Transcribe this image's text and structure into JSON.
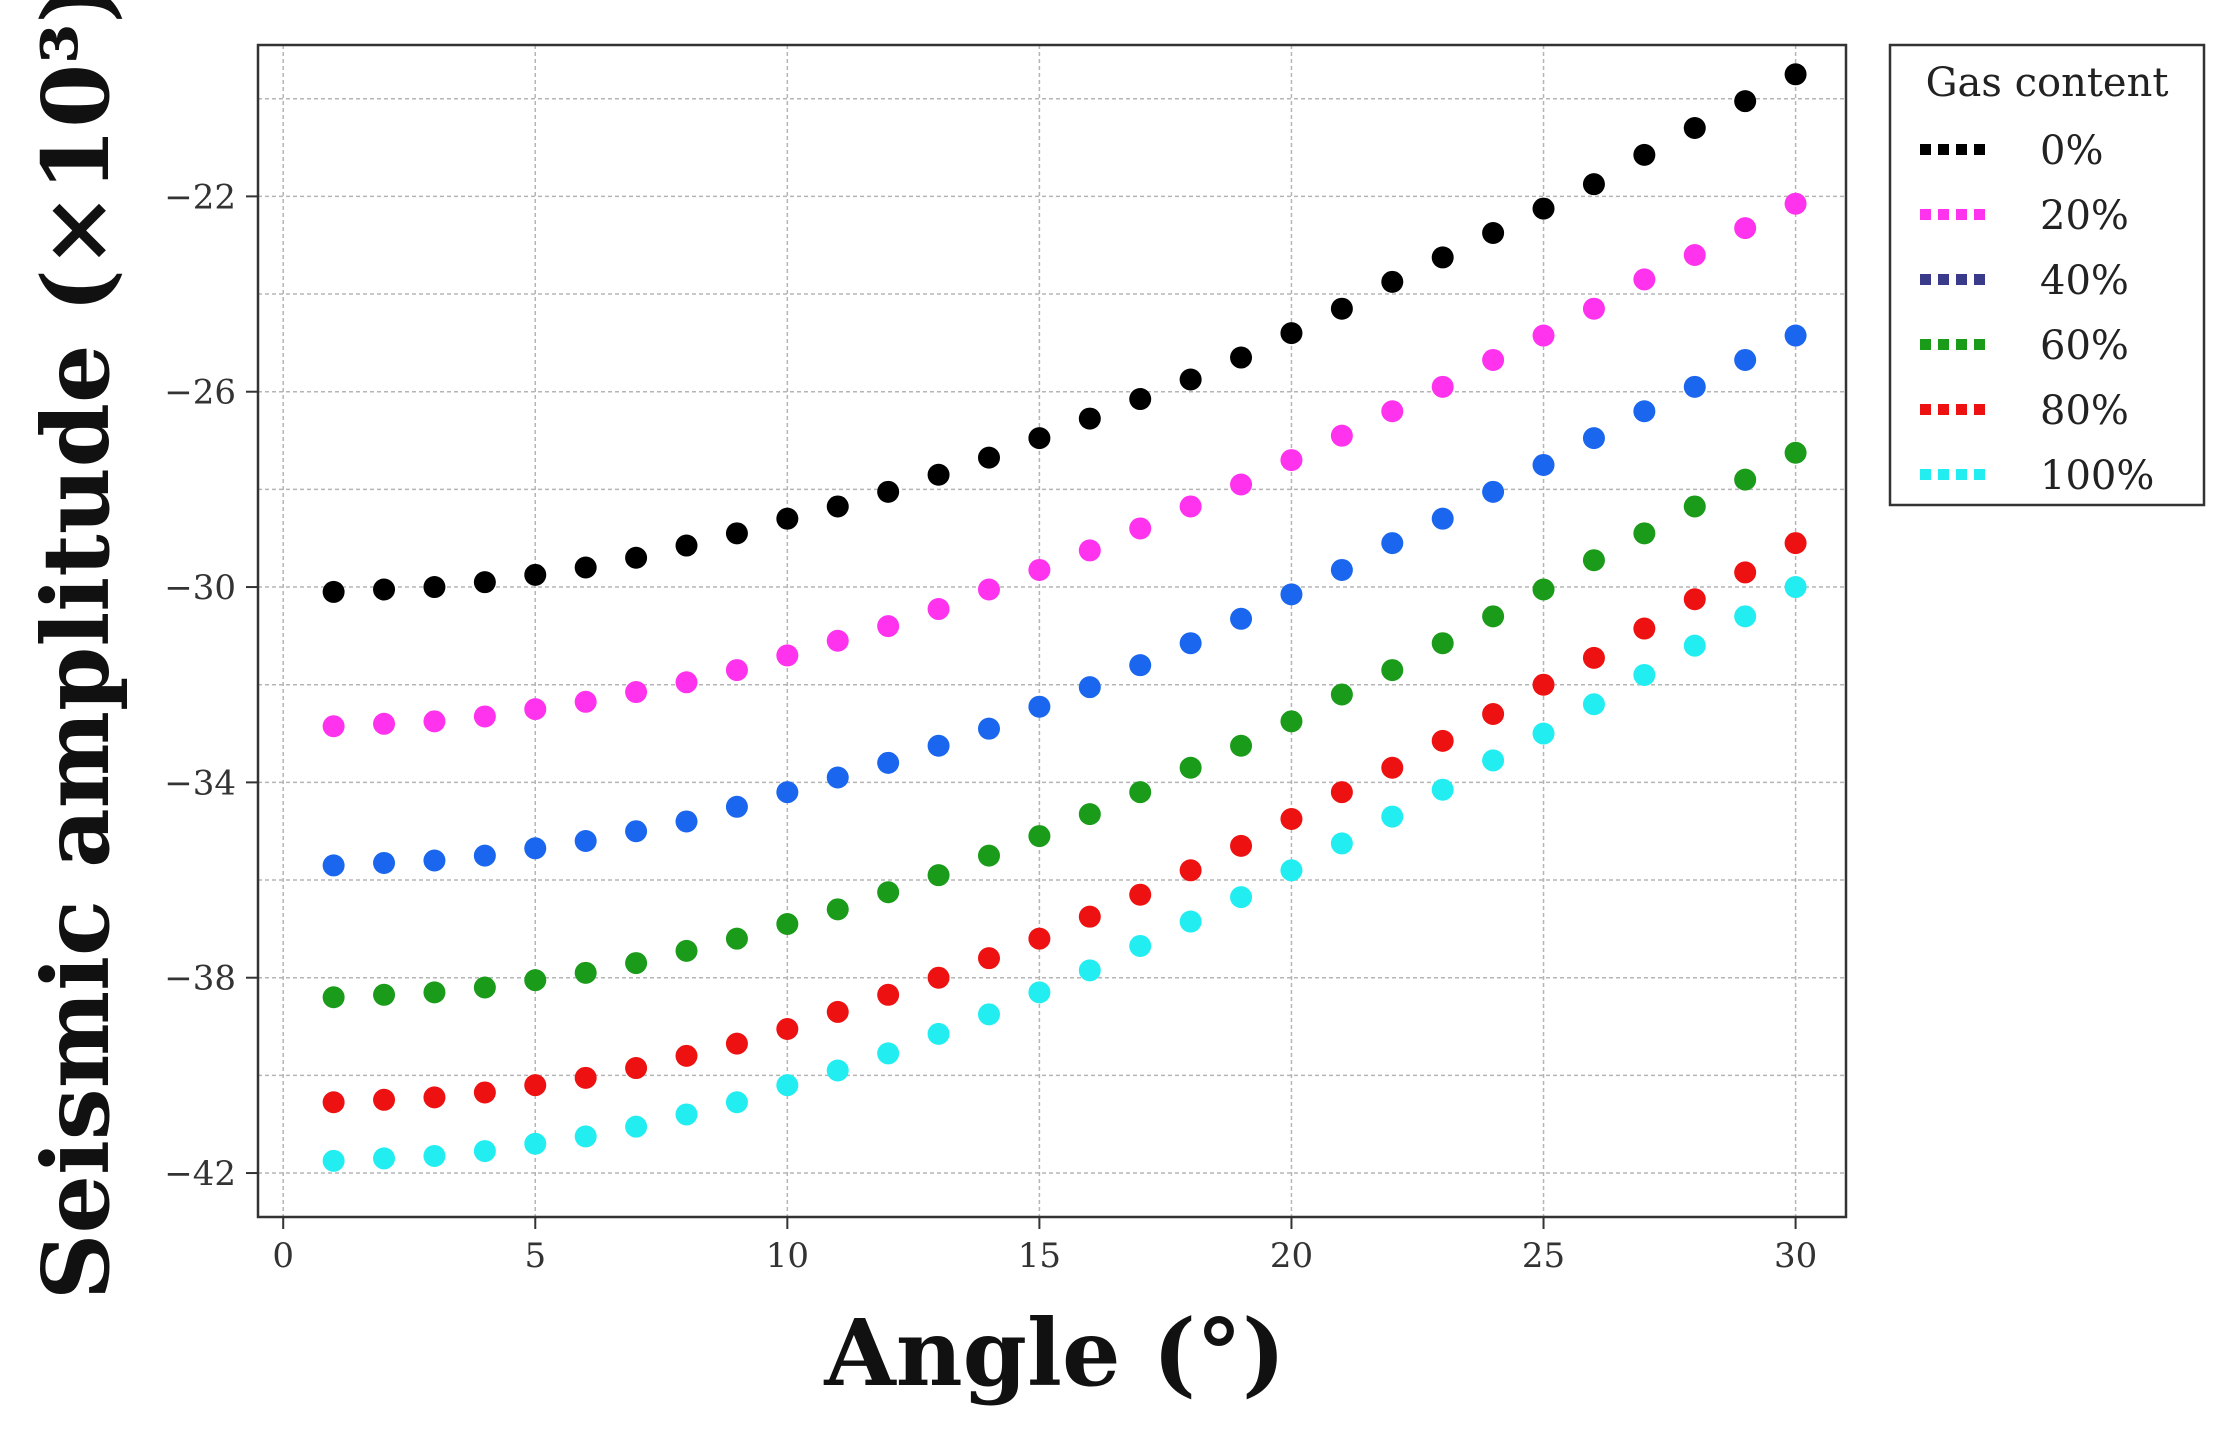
{
  "chart_data": {
    "type": "scatter",
    "title": "",
    "xlabel": "Angle (°)",
    "ylabel": "Seismic amplitude (×10³)",
    "xlim": [
      -0.5,
      31
    ],
    "ylim": [
      -42.9,
      -18.9
    ],
    "xticks": [
      0,
      5,
      10,
      15,
      20,
      25,
      30
    ],
    "yticks": [
      -22,
      -26,
      -30,
      -34,
      -38,
      -42
    ],
    "ytick_labels": [
      "−22",
      "−26",
      "−30",
      "−34",
      "−38",
      "−42"
    ],
    "grid": true,
    "legend": {
      "title": "Gas content",
      "position": "outside-right"
    },
    "x": [
      1,
      2,
      3,
      4,
      5,
      6,
      7,
      8,
      9,
      10,
      11,
      12,
      13,
      14,
      15,
      16,
      17,
      18,
      19,
      20,
      21,
      22,
      23,
      24,
      25,
      26,
      27,
      28,
      29,
      30
    ],
    "series": [
      {
        "name": "0%",
        "color": "#000000",
        "legend_color": "#000000",
        "values": [
          -30.1,
          -30.05,
          -30.0,
          -29.9,
          -29.75,
          -29.6,
          -29.4,
          -29.15,
          -28.9,
          -28.6,
          -28.35,
          -28.05,
          -27.7,
          -27.35,
          -26.95,
          -26.55,
          -26.15,
          -25.75,
          -25.3,
          -24.8,
          -24.3,
          -23.75,
          -23.25,
          -22.75,
          -22.25,
          -21.75,
          -21.15,
          -20.6,
          -20.05,
          -19.5
        ]
      },
      {
        "name": "20%",
        "color": "#ff33ee",
        "legend_color": "#ff33ee",
        "values": [
          -32.85,
          -32.8,
          -32.75,
          -32.65,
          -32.5,
          -32.35,
          -32.15,
          -31.95,
          -31.7,
          -31.4,
          -31.1,
          -30.8,
          -30.45,
          -30.05,
          -29.65,
          -29.25,
          -28.8,
          -28.35,
          -27.9,
          -27.4,
          -26.9,
          -26.4,
          -25.9,
          -25.35,
          -24.85,
          -24.3,
          -23.7,
          -23.2,
          -22.65,
          -22.15
        ]
      },
      {
        "name": "40%",
        "color": "#1a66ee",
        "legend_color": "#3a3a8a",
        "values": [
          -35.7,
          -35.65,
          -35.6,
          -35.5,
          -35.35,
          -35.2,
          -35.0,
          -34.8,
          -34.5,
          -34.2,
          -33.9,
          -33.6,
          -33.25,
          -32.9,
          -32.45,
          -32.05,
          -31.6,
          -31.15,
          -30.65,
          -30.15,
          -29.65,
          -29.1,
          -28.6,
          -28.05,
          -27.5,
          -26.95,
          -26.4,
          -25.9,
          -25.35,
          -24.85
        ]
      },
      {
        "name": "60%",
        "color": "#1a9b1a",
        "legend_color": "#1a9b1a",
        "values": [
          -38.4,
          -38.35,
          -38.3,
          -38.2,
          -38.05,
          -37.9,
          -37.7,
          -37.45,
          -37.2,
          -36.9,
          -36.6,
          -36.25,
          -35.9,
          -35.5,
          -35.1,
          -34.65,
          -34.2,
          -33.7,
          -33.25,
          -32.75,
          -32.2,
          -31.7,
          -31.15,
          -30.6,
          -30.05,
          -29.45,
          -28.9,
          -28.35,
          -27.8,
          -27.25
        ]
      },
      {
        "name": "80%",
        "color": "#ee1111",
        "legend_color": "#ee1111",
        "values": [
          -40.55,
          -40.5,
          -40.45,
          -40.35,
          -40.2,
          -40.05,
          -39.85,
          -39.6,
          -39.35,
          -39.05,
          -38.7,
          -38.35,
          -38.0,
          -37.6,
          -37.2,
          -36.75,
          -36.3,
          -35.8,
          -35.3,
          -34.75,
          -34.2,
          -33.7,
          -33.15,
          -32.6,
          -32.0,
          -31.45,
          -30.85,
          -30.25,
          -29.7,
          -29.1
        ]
      },
      {
        "name": "100%",
        "color": "#22eef2",
        "legend_color": "#22eef2",
        "values": [
          -41.75,
          -41.7,
          -41.65,
          -41.55,
          -41.4,
          -41.25,
          -41.05,
          -40.8,
          -40.55,
          -40.2,
          -39.9,
          -39.55,
          -39.15,
          -38.75,
          -38.3,
          -37.85,
          -37.35,
          -36.85,
          -36.35,
          -35.8,
          -35.25,
          -34.7,
          -34.15,
          -33.55,
          -33.0,
          -32.4,
          -31.8,
          -31.2,
          -30.6,
          -30.0
        ]
      }
    ]
  }
}
